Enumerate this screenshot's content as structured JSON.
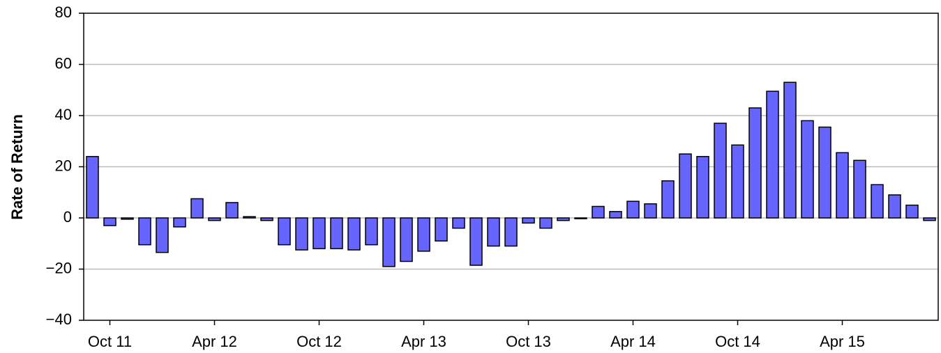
{
  "chart_data": {
    "type": "bar",
    "y_label": "Rate of Return",
    "categories": [
      null,
      "Oct 11",
      null,
      null,
      null,
      null,
      null,
      "Apr 12",
      null,
      null,
      null,
      null,
      null,
      "Oct 12",
      null,
      null,
      null,
      null,
      null,
      "Apr 13",
      null,
      null,
      null,
      null,
      null,
      "Oct 13",
      null,
      null,
      null,
      null,
      null,
      "Apr 14",
      null,
      null,
      null,
      null,
      null,
      "Oct 14",
      null,
      null,
      null,
      null,
      null,
      "Apr 15",
      null,
      null,
      null,
      null,
      null
    ],
    "values": [
      24,
      -3,
      -0.5,
      -10.5,
      -13.5,
      -3.5,
      7.5,
      -1,
      6,
      0.5,
      -1,
      -10.5,
      -12.5,
      -12,
      -12,
      -12.5,
      -10.5,
      -19,
      -17,
      -13,
      -9,
      -4,
      -18.5,
      -11,
      -11,
      -2,
      -4,
      -1,
      -0.3,
      4.5,
      2.5,
      6.5,
      5.5,
      14.5,
      25,
      24,
      37,
      28.5,
      43,
      49.5,
      53,
      38,
      35.5,
      25.5,
      22.5,
      13,
      9,
      5,
      -1
    ],
    "color": "#6666ff",
    "ylim": [
      -40,
      80
    ],
    "yticks": [
      {
        "value": -40,
        "label": "−40"
      },
      {
        "value": -20,
        "label": "−20"
      },
      0,
      20,
      40,
      60,
      80
    ],
    "grid": true
  }
}
